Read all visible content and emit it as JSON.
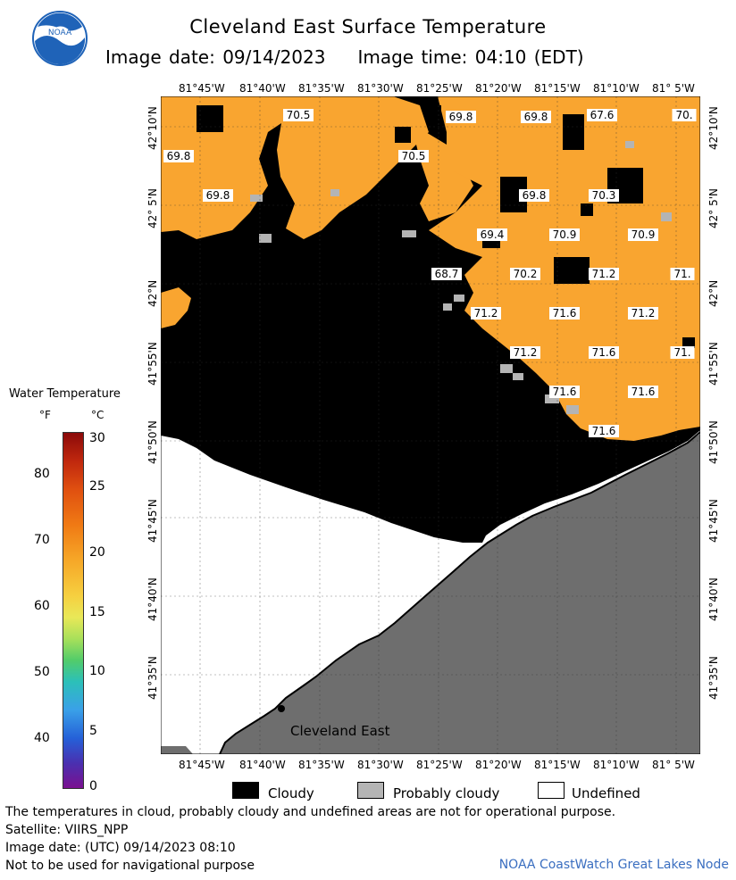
{
  "header": {
    "title": "Cleveland East Surface Temperature",
    "image_date_label": "Image date: 09/14/2023",
    "image_time_label": "Image time: 04:10 (EDT)"
  },
  "logo": {
    "text": "NOAA"
  },
  "map": {
    "lon_labels": [
      "81°45'W",
      "81°40'W",
      "81°35'W",
      "81°30'W",
      "81°25'W",
      "81°20'W",
      "81°15'W",
      "81°10'W",
      "81° 5'W"
    ],
    "lat_labels": [
      "42°10'N",
      "42° 5'N",
      "42°N",
      "41°55'N",
      "41°50'N",
      "41°45'N",
      "41°40'N",
      "41°35'N"
    ],
    "place_label": "Cleveland East",
    "temperature_labels": [
      "70.5",
      "69.8",
      "69.8",
      "67.6",
      "70.",
      "69.8",
      "70.5",
      "69.8",
      "69.8",
      "70.3",
      "69.4",
      "70.9",
      "70.9",
      "68.7",
      "70.2",
      "71.2",
      "71.",
      "71.2",
      "71.6",
      "71.2",
      "71.6",
      "71.2",
      "71.",
      "71.6",
      "71.6",
      "71.6"
    ],
    "colors": {
      "water": "#f9a530",
      "cloud": "#000000",
      "probably_cloudy": "#b4b4b4",
      "land": "#6e6e6e",
      "undefined": "#ffffff"
    }
  },
  "legend": {
    "title": "Water Temperature",
    "unit_f": "°F",
    "unit_c": "°C",
    "f_ticks": [
      "80",
      "70",
      "60",
      "50",
      "40"
    ],
    "c_ticks": [
      "30",
      "25",
      "20",
      "15",
      "10",
      "5",
      "0"
    ]
  },
  "key": {
    "cloudy": "Cloudy",
    "probably_cloudy": "Probably cloudy",
    "undefined": "Undefined"
  },
  "footer": {
    "note": "The temperatures in cloud, probably cloudy and undefined areas are not for operational purpose.",
    "satellite": "Satellite: VIIRS_NPP",
    "utc_date": "Image date: (UTC) 09/14/2023  08:10",
    "nav_warning": "Not to be used for navigational purpose",
    "credit": "NOAA CoastWatch Great Lakes Node"
  }
}
